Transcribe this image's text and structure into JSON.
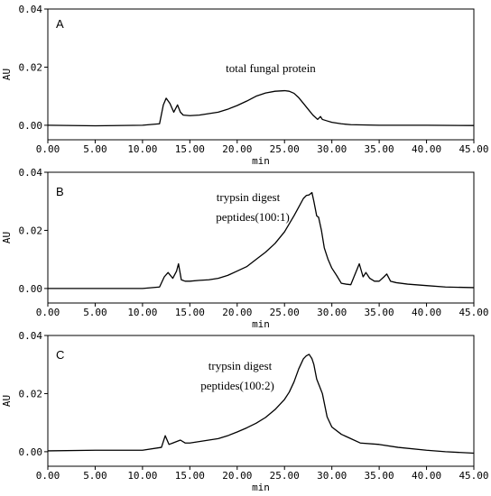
{
  "chart_data": [
    {
      "type": "line",
      "panel_label": "A",
      "annotation": [
        "total fungal protein"
      ],
      "xlabel": "min",
      "ylabel": "AU",
      "xlim": [
        0,
        45
      ],
      "ylim": [
        -0.005,
        0.04
      ],
      "x_ticks": [
        "0.00",
        "5.00",
        "10.00",
        "15.00",
        "20.00",
        "25.00",
        "30.00",
        "35.00",
        "40.00",
        "45.00"
      ],
      "y_ticks": [
        "0.00",
        "0.02",
        "0.04"
      ],
      "series": [
        {
          "x": [
            0,
            5,
            10,
            11.8,
            12.2,
            12.5,
            12.9,
            13.3,
            13.7,
            14.0,
            14.3,
            15,
            16,
            17,
            18,
            19,
            20,
            21,
            22,
            23,
            24,
            25,
            25.5,
            26,
            26.5,
            27,
            27.5,
            28,
            28.5,
            28.8,
            29,
            29.5,
            30,
            31,
            32,
            35,
            40,
            45
          ],
          "values": [
            0,
            -0.0002,
            0,
            0.0005,
            0.007,
            0.0093,
            0.0075,
            0.0045,
            0.007,
            0.0045,
            0.0035,
            0.0033,
            0.0035,
            0.004,
            0.0045,
            0.0055,
            0.0068,
            0.0083,
            0.01,
            0.0111,
            0.0117,
            0.0119,
            0.0117,
            0.011,
            0.0095,
            0.0075,
            0.0055,
            0.0035,
            0.002,
            0.003,
            0.002,
            0.0015,
            0.001,
            0.0005,
            0.0002,
            0,
            0,
            -0.0001
          ]
        }
      ]
    },
    {
      "type": "line",
      "panel_label": "B",
      "annotation": [
        "trypsin digest",
        "peptides(100:1)"
      ],
      "xlabel": "min",
      "ylabel": "AU",
      "xlim": [
        0,
        45
      ],
      "ylim": [
        -0.005,
        0.04
      ],
      "x_ticks": [
        "0.00",
        "5.00",
        "10.00",
        "15.00",
        "20.00",
        "25.00",
        "30.00",
        "35.00",
        "40.00",
        "45.00"
      ],
      "y_ticks": [
        "0.00",
        "0.02",
        "0.04"
      ],
      "series": [
        {
          "x": [
            0,
            5,
            10,
            11.8,
            12.3,
            12.7,
            13.2,
            13.6,
            13.8,
            14.1,
            14.5,
            15,
            16,
            17,
            18,
            19,
            20,
            21,
            22,
            23,
            24,
            25,
            26,
            26.5,
            27,
            27.3,
            27.6,
            27.9,
            28.1,
            28.4,
            28.6,
            28.9,
            29.2,
            29.6,
            30,
            30.5,
            31,
            31.5,
            32,
            32.4,
            32.9,
            33.3,
            33.6,
            34,
            34.5,
            35,
            35.5,
            35.8,
            36.2,
            36.8,
            38,
            40,
            42,
            45
          ],
          "values": [
            0,
            0,
            0,
            0.0005,
            0.004,
            0.0055,
            0.0035,
            0.006,
            0.0085,
            0.003,
            0.0025,
            0.0025,
            0.0028,
            0.003,
            0.0035,
            0.0045,
            0.006,
            0.0075,
            0.01,
            0.0125,
            0.0155,
            0.0195,
            0.025,
            0.028,
            0.031,
            0.032,
            0.0322,
            0.033,
            0.03,
            0.025,
            0.0245,
            0.02,
            0.014,
            0.01,
            0.007,
            0.0045,
            0.0018,
            0.0015,
            0.0013,
            0.0045,
            0.0085,
            0.004,
            0.0055,
            0.0035,
            0.0025,
            0.0025,
            0.004,
            0.005,
            0.0025,
            0.002,
            0.0015,
            0.001,
            0.0005,
            0.0003
          ]
        }
      ]
    },
    {
      "type": "line",
      "panel_label": "C",
      "annotation": [
        "trypsin digest",
        "peptides(100:2)"
      ],
      "xlabel": "min",
      "ylabel": "AU",
      "xlim": [
        0,
        45
      ],
      "ylim": [
        -0.005,
        0.04
      ],
      "x_ticks": [
        "0.00",
        "5.00",
        "10.00",
        "15.00",
        "20.00",
        "25.00",
        "30.00",
        "35.00",
        "40.00",
        "45.00"
      ],
      "y_ticks": [
        "0.00",
        "0.02",
        "0.04"
      ],
      "series": [
        {
          "x": [
            0,
            5,
            10,
            12,
            12.4,
            12.8,
            13.2,
            13.6,
            14,
            14.5,
            15,
            16,
            17,
            18,
            19,
            20,
            21,
            22,
            23,
            24,
            25,
            25.5,
            26,
            26.5,
            27,
            27.3,
            27.6,
            27.9,
            28.1,
            28.4,
            28.7,
            29.0,
            29.5,
            30,
            31,
            32,
            33,
            35,
            37,
            40,
            42,
            45
          ],
          "values": [
            0.0003,
            0.0005,
            0.0005,
            0.0015,
            0.0055,
            0.0025,
            0.003,
            0.0035,
            0.004,
            0.003,
            0.003,
            0.0035,
            0.004,
            0.0045,
            0.0055,
            0.0068,
            0.0082,
            0.0098,
            0.0118,
            0.0145,
            0.018,
            0.0205,
            0.024,
            0.0285,
            0.032,
            0.033,
            0.0335,
            0.032,
            0.03,
            0.025,
            0.0225,
            0.02,
            0.012,
            0.0085,
            0.006,
            0.0045,
            0.003,
            0.0025,
            0.0015,
            0.0005,
            0,
            -0.0005
          ]
        }
      ]
    }
  ]
}
